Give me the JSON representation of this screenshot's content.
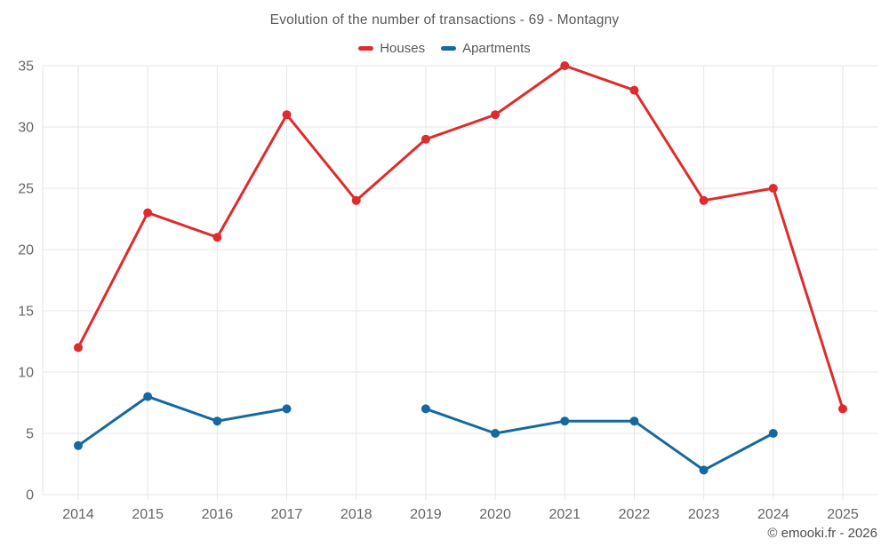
{
  "page": {
    "credit": "© emooki.fr - 2026"
  },
  "chart_data": {
    "type": "line",
    "title": "Evolution of the number of transactions - 69 - Montagny",
    "xlabel": "",
    "ylabel": "",
    "categories": [
      "2014",
      "2015",
      "2016",
      "2017",
      "2018",
      "2019",
      "2020",
      "2021",
      "2022",
      "2023",
      "2024",
      "2025"
    ],
    "series": [
      {
        "name": "Houses",
        "color": "#e02b2e",
        "values": [
          12,
          23,
          21,
          31,
          24,
          29,
          31,
          35,
          33,
          24,
          25,
          7
        ]
      },
      {
        "name": "Apartments",
        "color": "#1569a0",
        "values": [
          4,
          8,
          6,
          7,
          null,
          7,
          5,
          6,
          6,
          2,
          5,
          null
        ]
      }
    ],
    "ylim": [
      0,
      35
    ],
    "yticks": [
      0,
      5,
      10,
      15,
      20,
      25,
      30,
      35
    ],
    "grid": true,
    "legend_position": "top"
  },
  "colors": {
    "grid": "#e6e6e6",
    "axis_text": "#666666",
    "title_text": "#595959",
    "credit_text": "#4d4d4d",
    "background": "#ffffff"
  }
}
